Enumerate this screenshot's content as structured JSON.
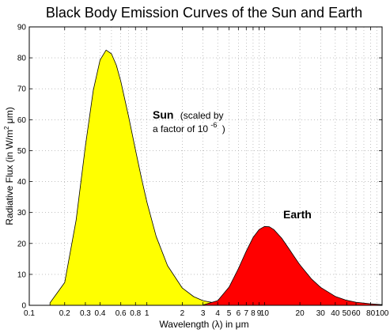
{
  "chart_data": {
    "type": "area",
    "title": "Black Body Emission Curves of the Sun and Earth",
    "xlabel": "Wavelength (λ) in μm",
    "ylabel": "Radiative Flux (in W/m² μm)",
    "x_scale": "log",
    "xlim": [
      0.1,
      100
    ],
    "ylim": [
      0,
      90
    ],
    "grid": true,
    "x_ticks": [
      {
        "value": 0.1,
        "label": "0.1"
      },
      {
        "value": 0.2,
        "label": "0.2"
      },
      {
        "value": 0.3,
        "label": "0.3"
      },
      {
        "value": 0.4,
        "label": "0.4"
      },
      {
        "value": 0.6,
        "label": "0.6"
      },
      {
        "value": 0.8,
        "label": "0.8"
      },
      {
        "value": 1,
        "label": "1"
      },
      {
        "value": 2,
        "label": "2"
      },
      {
        "value": 3,
        "label": "3"
      },
      {
        "value": 4,
        "label": "4"
      },
      {
        "value": 5,
        "label": "5"
      },
      {
        "value": 6,
        "label": "6"
      },
      {
        "value": 7,
        "label": "7"
      },
      {
        "value": 8,
        "label": "8"
      },
      {
        "value": 9,
        "label": "9"
      },
      {
        "value": 10,
        "label": "10"
      },
      {
        "value": 20,
        "label": "20"
      },
      {
        "value": 30,
        "label": "30"
      },
      {
        "value": 40,
        "label": "40"
      },
      {
        "value": 50,
        "label": "50"
      },
      {
        "value": 60,
        "label": "60"
      },
      {
        "value": 80,
        "label": "80"
      },
      {
        "value": 100,
        "label": "100"
      }
    ],
    "y_ticks": [
      0,
      10,
      20,
      30,
      40,
      50,
      60,
      70,
      80,
      90
    ],
    "series": [
      {
        "name": "Sun",
        "fill": "#ffff00",
        "x": [
          0.15,
          0.2,
          0.25,
          0.3,
          0.35,
          0.4,
          0.45,
          0.5,
          0.55,
          0.6,
          0.7,
          0.8,
          0.9,
          1.0,
          1.2,
          1.5,
          2.0,
          2.5,
          3.0,
          4.0,
          5.0,
          6.0
        ],
        "y": [
          0.8,
          7.4,
          27.5,
          51.4,
          69.5,
          79.3,
          82.5,
          81.3,
          77.6,
          72.4,
          61.0,
          50.2,
          41.0,
          33.4,
          22.3,
          12.8,
          5.6,
          2.8,
          1.5,
          0.55,
          0.24,
          0.12
        ]
      },
      {
        "name": "Earth",
        "fill": "#ff0000",
        "x": [
          3,
          4,
          5,
          6,
          7,
          8,
          9,
          10,
          11,
          12,
          14,
          16,
          18,
          20,
          25,
          30,
          40,
          50,
          60,
          80,
          100
        ],
        "y": [
          0.1,
          1.5,
          5.9,
          11.9,
          17.5,
          21.9,
          24.5,
          25.5,
          25.4,
          24.5,
          21.7,
          18.5,
          15.6,
          13.1,
          8.6,
          5.8,
          2.9,
          1.6,
          1.0,
          0.45,
          0.2
        ]
      }
    ],
    "annotations": [
      {
        "id": "sun",
        "name": "Sun",
        "text1": "(scaled by",
        "text2": "a factor of 10",
        "exponent": "-6",
        "close": ")"
      },
      {
        "id": "earth",
        "name": "Earth"
      }
    ]
  }
}
